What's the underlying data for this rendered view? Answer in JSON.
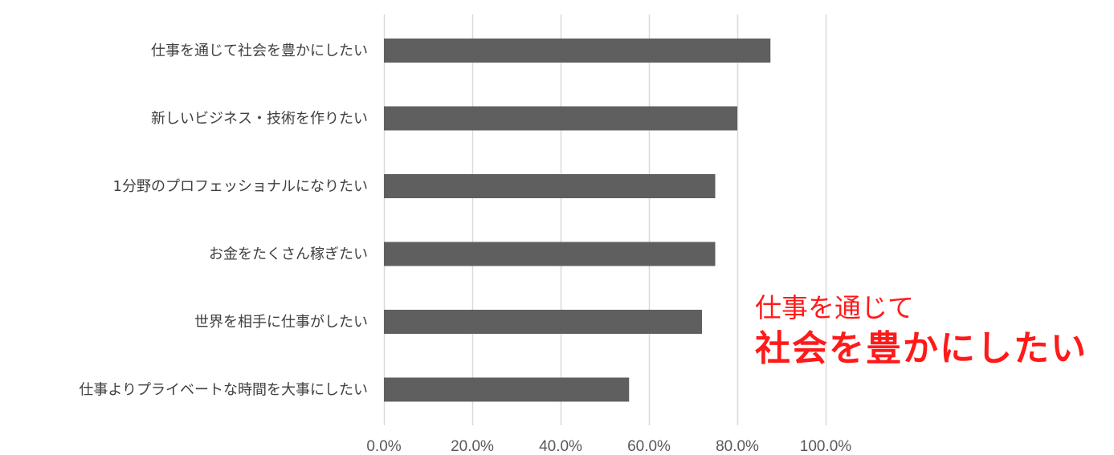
{
  "chart_data": {
    "type": "bar",
    "orientation": "horizontal",
    "categories": [
      "仕事を通じて社会を豊かにしたい",
      "新しいビジネス・技術を作りたい",
      "1分野のプロフェッショナルになりたい",
      "お金をたくさん稼ぎたい",
      "世界を相手に仕事がしたい",
      "仕事よりプライベートな時間を大事にしたい"
    ],
    "values": [
      87.5,
      80.0,
      75.0,
      75.0,
      72.0,
      55.5
    ],
    "xlim": [
      0,
      100
    ],
    "x_ticks": [
      0,
      20,
      40,
      60,
      80,
      100
    ],
    "x_tick_labels": [
      "0.0%",
      "20.0%",
      "40.0%",
      "60.0%",
      "80.0%",
      "100.0%"
    ],
    "grid": "vertical",
    "bar_color": "#5f5f5f",
    "grid_color": "#d9d9d9",
    "legend": "none"
  },
  "annotation": {
    "line1": "仕事を通じて",
    "line2": "社会を豊かにしたい",
    "color": "#ff1a1a"
  }
}
